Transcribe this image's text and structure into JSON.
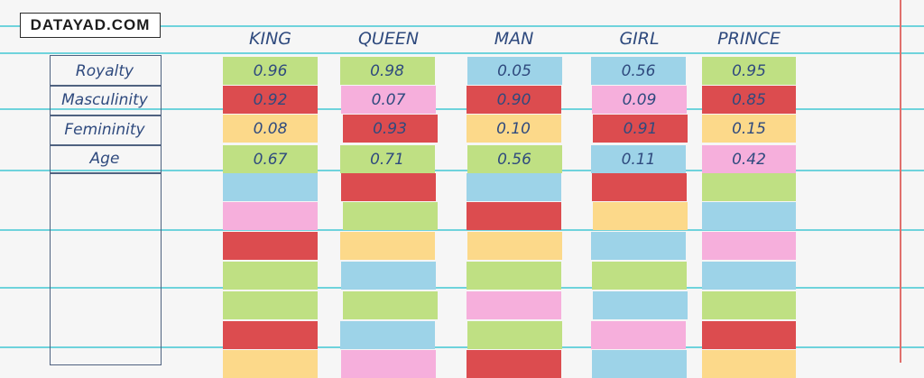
{
  "logo_text": "DATAYAD.COM",
  "features": [
    "Royalty",
    "Masculinity",
    "Femininity",
    "Age"
  ],
  "columns": [
    {
      "word": "KING",
      "values": [
        "0.96",
        "0.92",
        "0.08",
        "0.67"
      ]
    },
    {
      "word": "QUEEN",
      "values": [
        "0.98",
        "0.07",
        "0.93",
        "0.71"
      ]
    },
    {
      "word": "MAN",
      "values": [
        "0.05",
        "0.90",
        "0.10",
        "0.56"
      ]
    },
    {
      "word": "GIRL",
      "values": [
        "0.56",
        "0.09",
        "0.91",
        "0.11"
      ]
    },
    {
      "word": "PRINCE",
      "values": [
        "0.95",
        "0.85",
        "0.15",
        "0.42"
      ]
    }
  ],
  "palette": {
    "green": "#bfe083",
    "red": "#dc4c4f",
    "yellow": "#fcd98a",
    "pink": "#f6afdc",
    "blue": "#9dd3e8"
  },
  "cell_colors": [
    [
      "green",
      "red",
      "yellow",
      "green",
      "blue",
      "pink",
      "red",
      "green",
      "green",
      "red",
      "yellow"
    ],
    [
      "green",
      "pink",
      "red",
      "green",
      "red",
      "green",
      "yellow",
      "blue",
      "green",
      "blue",
      "pink"
    ],
    [
      "blue",
      "red",
      "yellow",
      "green",
      "blue",
      "red",
      "yellow",
      "green",
      "pink",
      "green",
      "red"
    ],
    [
      "blue",
      "pink",
      "red",
      "blue",
      "red",
      "yellow",
      "blue",
      "green",
      "blue",
      "pink",
      "blue"
    ],
    [
      "green",
      "red",
      "yellow",
      "pink",
      "green",
      "blue",
      "pink",
      "blue",
      "green",
      "red",
      "yellow"
    ]
  ]
}
